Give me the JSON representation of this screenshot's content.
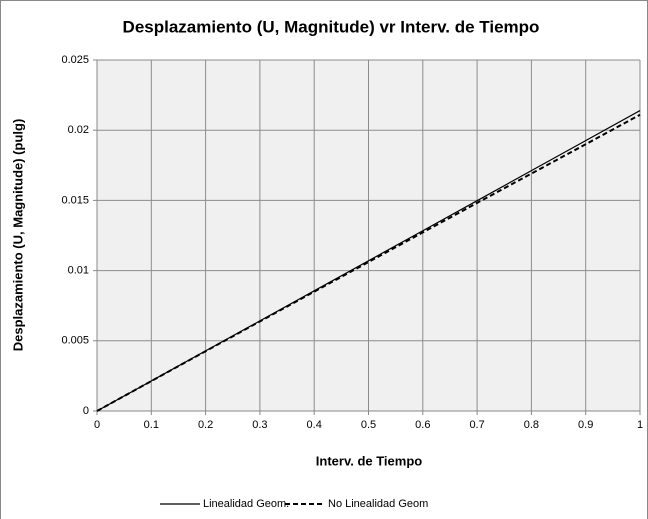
{
  "chart_data": {
    "type": "line",
    "title": "Desplazamiento (U, Magnitude) vr Interv. de Tiempo",
    "x_label": "Interv. de Tiempo",
    "y_label": "Desplazamiento (U, Magnitude) (pulg)",
    "x": [
      0,
      0.1,
      0.2,
      0.3,
      0.4,
      0.5,
      0.6,
      0.7,
      0.8,
      0.9,
      1
    ],
    "series": [
      {
        "name": "Linealidad Geom.",
        "color": "#000000",
        "dash": false,
        "values": [
          0,
          0.00214,
          0.00428,
          0.00642,
          0.00856,
          0.0107,
          0.01284,
          0.01498,
          0.01712,
          0.01926,
          0.0214
        ]
      },
      {
        "name": "No Linealidad Geom",
        "color": "#000000",
        "dash": true,
        "values": [
          0,
          0.00213,
          0.00426,
          0.00638,
          0.0085,
          0.01061,
          0.01272,
          0.01482,
          0.01691,
          0.019,
          0.0211
        ]
      }
    ],
    "xlim": [
      0,
      1
    ],
    "xticks": [
      0,
      0.1,
      0.2,
      0.3,
      0.4,
      0.5,
      0.6,
      0.7,
      0.8,
      0.9,
      1
    ],
    "ylim": [
      0,
      0.025
    ],
    "yticks": [
      0,
      0.005,
      0.01,
      0.015,
      0.02,
      0.025
    ],
    "grid": true,
    "legend": "bottom"
  }
}
